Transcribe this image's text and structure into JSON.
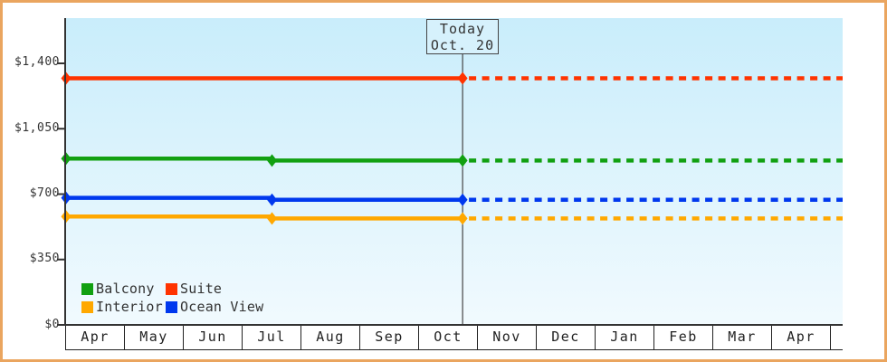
{
  "chart_data": {
    "type": "line",
    "title": "",
    "y_axis": {
      "tick_values": [
        0,
        350,
        700,
        1050,
        1400
      ],
      "tick_labels": [
        "$0",
        "$350",
        "$700",
        "$1,050",
        "$1,400"
      ],
      "max_value": 1400
    },
    "x_axis": {
      "months": [
        "Apr",
        "May",
        "Jun",
        "Jul",
        "Aug",
        "Sep",
        "Oct",
        "Nov",
        "Dec",
        "Jan",
        "Feb",
        "Mar",
        "Apr"
      ]
    },
    "today": {
      "line1": "Today",
      "line2": "Oct. 20",
      "month_offset": 6.74
    },
    "series": [
      {
        "name": "Suite",
        "color": "#ff3300",
        "points": [
          {
            "m": 0,
            "v": 1320
          },
          {
            "m": 6.74,
            "v": 1320
          }
        ],
        "forecast_value": 1320
      },
      {
        "name": "Balcony",
        "color": "#11a011",
        "points": [
          {
            "m": 0,
            "v": 890
          },
          {
            "m": 3.5,
            "v": 880
          },
          {
            "m": 6.74,
            "v": 880
          }
        ],
        "forecast_value": 880
      },
      {
        "name": "Ocean View",
        "color": "#0038ee",
        "points": [
          {
            "m": 0,
            "v": 680
          },
          {
            "m": 3.5,
            "v": 670
          },
          {
            "m": 6.74,
            "v": 670
          }
        ],
        "forecast_value": 670
      },
      {
        "name": "Interior",
        "color": "#ffa800",
        "points": [
          {
            "m": 0,
            "v": 580
          },
          {
            "m": 3.5,
            "v": 570
          },
          {
            "m": 6.74,
            "v": 570
          }
        ],
        "forecast_value": 570
      }
    ],
    "legend": [
      {
        "label": "Balcony",
        "color": "#11a011"
      },
      {
        "label": "Suite",
        "color": "#ff3300"
      },
      {
        "label": "Interior",
        "color": "#ffa800"
      },
      {
        "label": "Ocean View",
        "color": "#0038ee"
      }
    ],
    "colors": {
      "border": "#eaa55f",
      "plot_top": "#c9edfb",
      "plot_bottom": "#f1fafe",
      "axis": "#333333"
    },
    "layout_hints": {
      "grid": false,
      "legend_position": "bottom-left-inside",
      "forecast_style": "dashed-after-today"
    }
  }
}
